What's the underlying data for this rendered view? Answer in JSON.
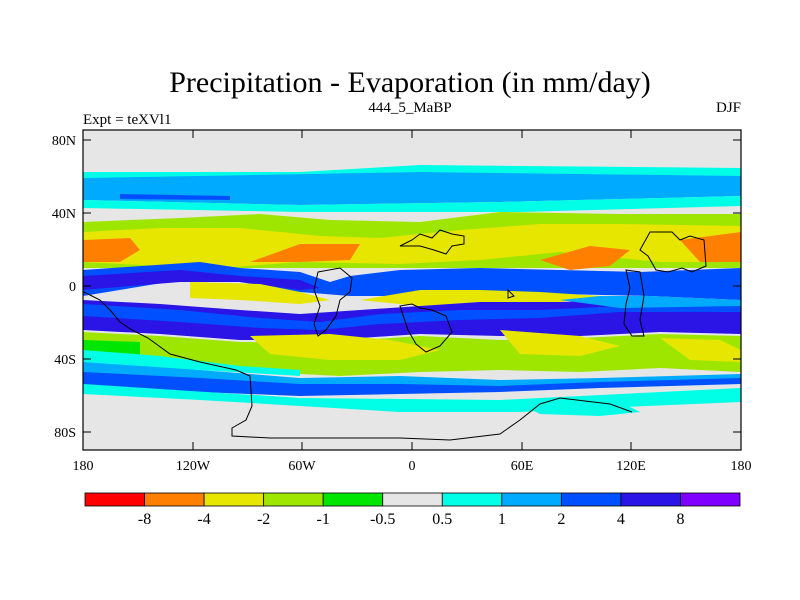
{
  "title": "Precipitation - Evaporation (in mm/day)",
  "subtitle_center": "444_5_MaBP",
  "subtitle_left": "Expt = teXVl1",
  "subtitle_right": "DJF",
  "lat_labels": [
    "80N",
    "40N",
    "0",
    "40S",
    "80S"
  ],
  "lon_labels": [
    "180",
    "120W",
    "60W",
    "0",
    "60E",
    "120E",
    "180"
  ],
  "colorbar": {
    "colors": [
      "#ff0000",
      "#ff7f00",
      "#e6e600",
      "#9ee600",
      "#00e600",
      "#e6e6e6",
      "#00ffe6",
      "#00aaff",
      "#0050ff",
      "#2a14e6",
      "#7f00ff"
    ],
    "labels": [
      "-8",
      "-4",
      "-2",
      "-1",
      "-0.5",
      "0.5",
      "1",
      "2",
      "4",
      "8"
    ]
  }
}
